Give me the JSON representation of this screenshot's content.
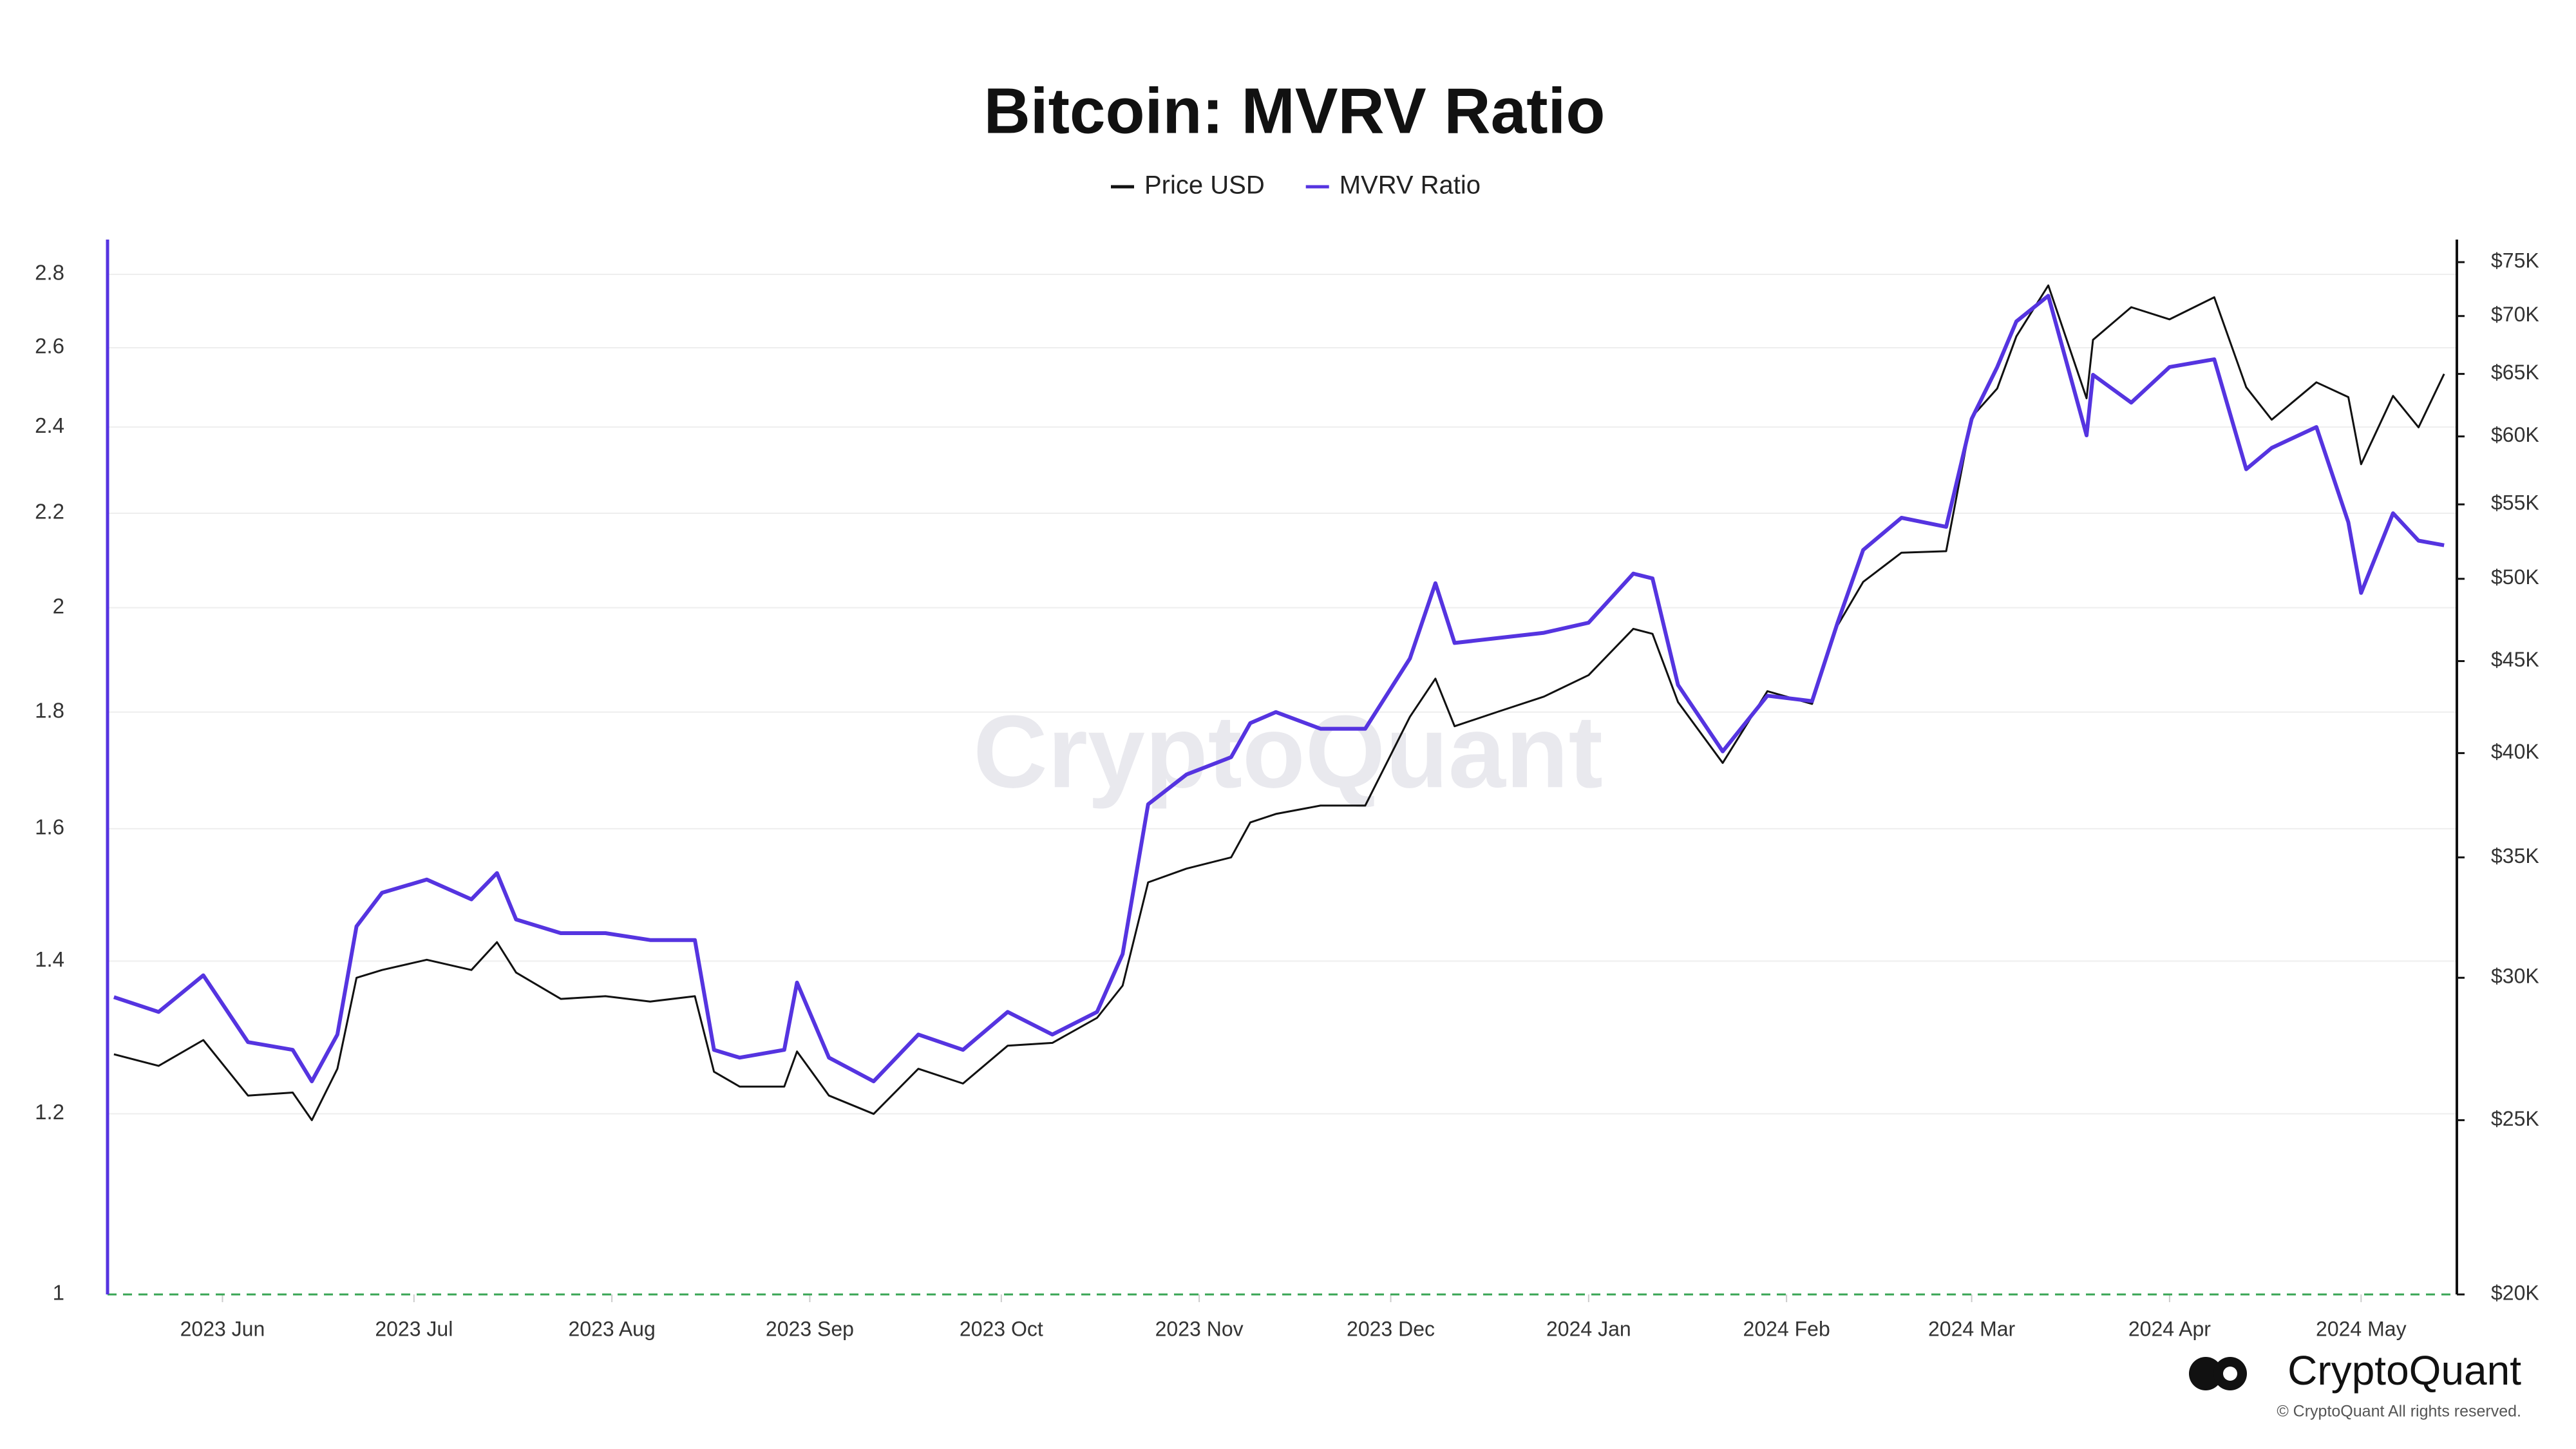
{
  "chart_data": {
    "type": "line",
    "title": "Bitcoin: MVRV Ratio",
    "watermark": "CryptoQuant",
    "brand": "CryptoQuant",
    "copyright": "© CryptoQuant All rights reserved.",
    "x": [
      "2023-05-15",
      "2023-05-22",
      "2023-05-29",
      "2023-06-05",
      "2023-06-12",
      "2023-06-15",
      "2023-06-19",
      "2023-06-22",
      "2023-06-26",
      "2023-07-03",
      "2023-07-10",
      "2023-07-14",
      "2023-07-17",
      "2023-07-24",
      "2023-07-31",
      "2023-08-07",
      "2023-08-14",
      "2023-08-17",
      "2023-08-21",
      "2023-08-28",
      "2023-08-30",
      "2023-09-04",
      "2023-09-11",
      "2023-09-18",
      "2023-09-25",
      "2023-10-02",
      "2023-10-09",
      "2023-10-16",
      "2023-10-20",
      "2023-10-24",
      "2023-10-30",
      "2023-11-06",
      "2023-11-09",
      "2023-11-13",
      "2023-11-20",
      "2023-11-27",
      "2023-12-04",
      "2023-12-08",
      "2023-12-11",
      "2023-12-18",
      "2023-12-25",
      "2024-01-01",
      "2024-01-08",
      "2024-01-11",
      "2024-01-15",
      "2024-01-22",
      "2024-01-29",
      "2024-02-05",
      "2024-02-09",
      "2024-02-13",
      "2024-02-19",
      "2024-02-26",
      "2024-03-01",
      "2024-03-05",
      "2024-03-08",
      "2024-03-13",
      "2024-03-19",
      "2024-03-20",
      "2024-03-26",
      "2024-04-01",
      "2024-04-08",
      "2024-04-13",
      "2024-04-17",
      "2024-04-24",
      "2024-04-29",
      "2024-05-01",
      "2024-05-06",
      "2024-05-10",
      "2024-05-14"
    ],
    "xlim": [
      "2023-05-14",
      "2024-05-16"
    ],
    "xticks": [
      {
        "value": "2023-06-01",
        "label": "2023 Jun"
      },
      {
        "value": "2023-07-01",
        "label": "2023 Jul"
      },
      {
        "value": "2023-08-01",
        "label": "2023 Aug"
      },
      {
        "value": "2023-09-01",
        "label": "2023 Sep"
      },
      {
        "value": "2023-10-01",
        "label": "2023 Oct"
      },
      {
        "value": "2023-11-01",
        "label": "2023 Nov"
      },
      {
        "value": "2023-12-01",
        "label": "2023 Dec"
      },
      {
        "value": "2024-01-01",
        "label": "2024 Jan"
      },
      {
        "value": "2024-02-01",
        "label": "2024 Feb"
      },
      {
        "value": "2024-03-01",
        "label": "2024 Mar"
      },
      {
        "value": "2024-04-01",
        "label": "2024 Apr"
      },
      {
        "value": "2024-05-01",
        "label": "2024 May"
      }
    ],
    "ylim": [
      1,
      2.9
    ],
    "yticks": [
      1,
      1.2,
      1.4,
      1.6,
      1.8,
      2,
      2.2,
      2.4,
      2.6,
      2.8
    ],
    "y_log": true,
    "y2lim": [
      20000,
      77200
    ],
    "y2ticks": [
      {
        "value": 20000,
        "label": "$20K"
      },
      {
        "value": 25000,
        "label": "$25K"
      },
      {
        "value": 30000,
        "label": "$30K"
      },
      {
        "value": 35000,
        "label": "$35K"
      },
      {
        "value": 40000,
        "label": "$40K"
      },
      {
        "value": 45000,
        "label": "$45K"
      },
      {
        "value": 50000,
        "label": "$50K"
      },
      {
        "value": 55000,
        "label": "$55K"
      },
      {
        "value": 60000,
        "label": "$60K"
      },
      {
        "value": 65000,
        "label": "$65K"
      },
      {
        "value": 70000,
        "label": "$70K"
      },
      {
        "value": 75000,
        "label": "$75K"
      }
    ],
    "y2_log": true,
    "grid": true,
    "legend": "top",
    "series": [
      {
        "name": "Price USD",
        "color": "#111111",
        "axis": "y2",
        "values": [
          27200,
          26800,
          27700,
          25800,
          25900,
          25000,
          26700,
          30000,
          30300,
          30700,
          30300,
          31400,
          30200,
          29200,
          29300,
          29100,
          29300,
          26600,
          26100,
          26100,
          27300,
          25800,
          25200,
          26700,
          26200,
          27500,
          27600,
          28500,
          29700,
          33900,
          34500,
          35000,
          36600,
          37000,
          37400,
          37400,
          41900,
          44000,
          41400,
          42200,
          43000,
          44200,
          46900,
          46600,
          42700,
          39500,
          43300,
          42600,
          47100,
          49800,
          51700,
          51800,
          61500,
          63800,
          68200,
          72800,
          63000,
          67900,
          70800,
          69700,
          71700,
          63900,
          61300,
          64300,
          63100,
          57900,
          63200,
          60700,
          65000
        ]
      },
      {
        "name": "MVRV Ratio",
        "color": "#5534e0",
        "values": [
          1.35,
          1.33,
          1.38,
          1.29,
          1.28,
          1.24,
          1.3,
          1.45,
          1.5,
          1.52,
          1.49,
          1.53,
          1.46,
          1.44,
          1.44,
          1.43,
          1.43,
          1.28,
          1.27,
          1.28,
          1.37,
          1.27,
          1.24,
          1.3,
          1.28,
          1.33,
          1.3,
          1.33,
          1.41,
          1.64,
          1.69,
          1.72,
          1.78,
          1.8,
          1.77,
          1.77,
          1.9,
          2.05,
          1.93,
          1.94,
          1.95,
          1.97,
          2.07,
          2.06,
          1.85,
          1.73,
          1.83,
          1.82,
          1.97,
          2.12,
          2.19,
          2.17,
          2.42,
          2.55,
          2.67,
          2.74,
          2.38,
          2.53,
          2.46,
          2.55,
          2.57,
          2.3,
          2.35,
          2.4,
          2.18,
          2.03,
          2.2,
          2.14,
          2.13
        ]
      }
    ]
  }
}
